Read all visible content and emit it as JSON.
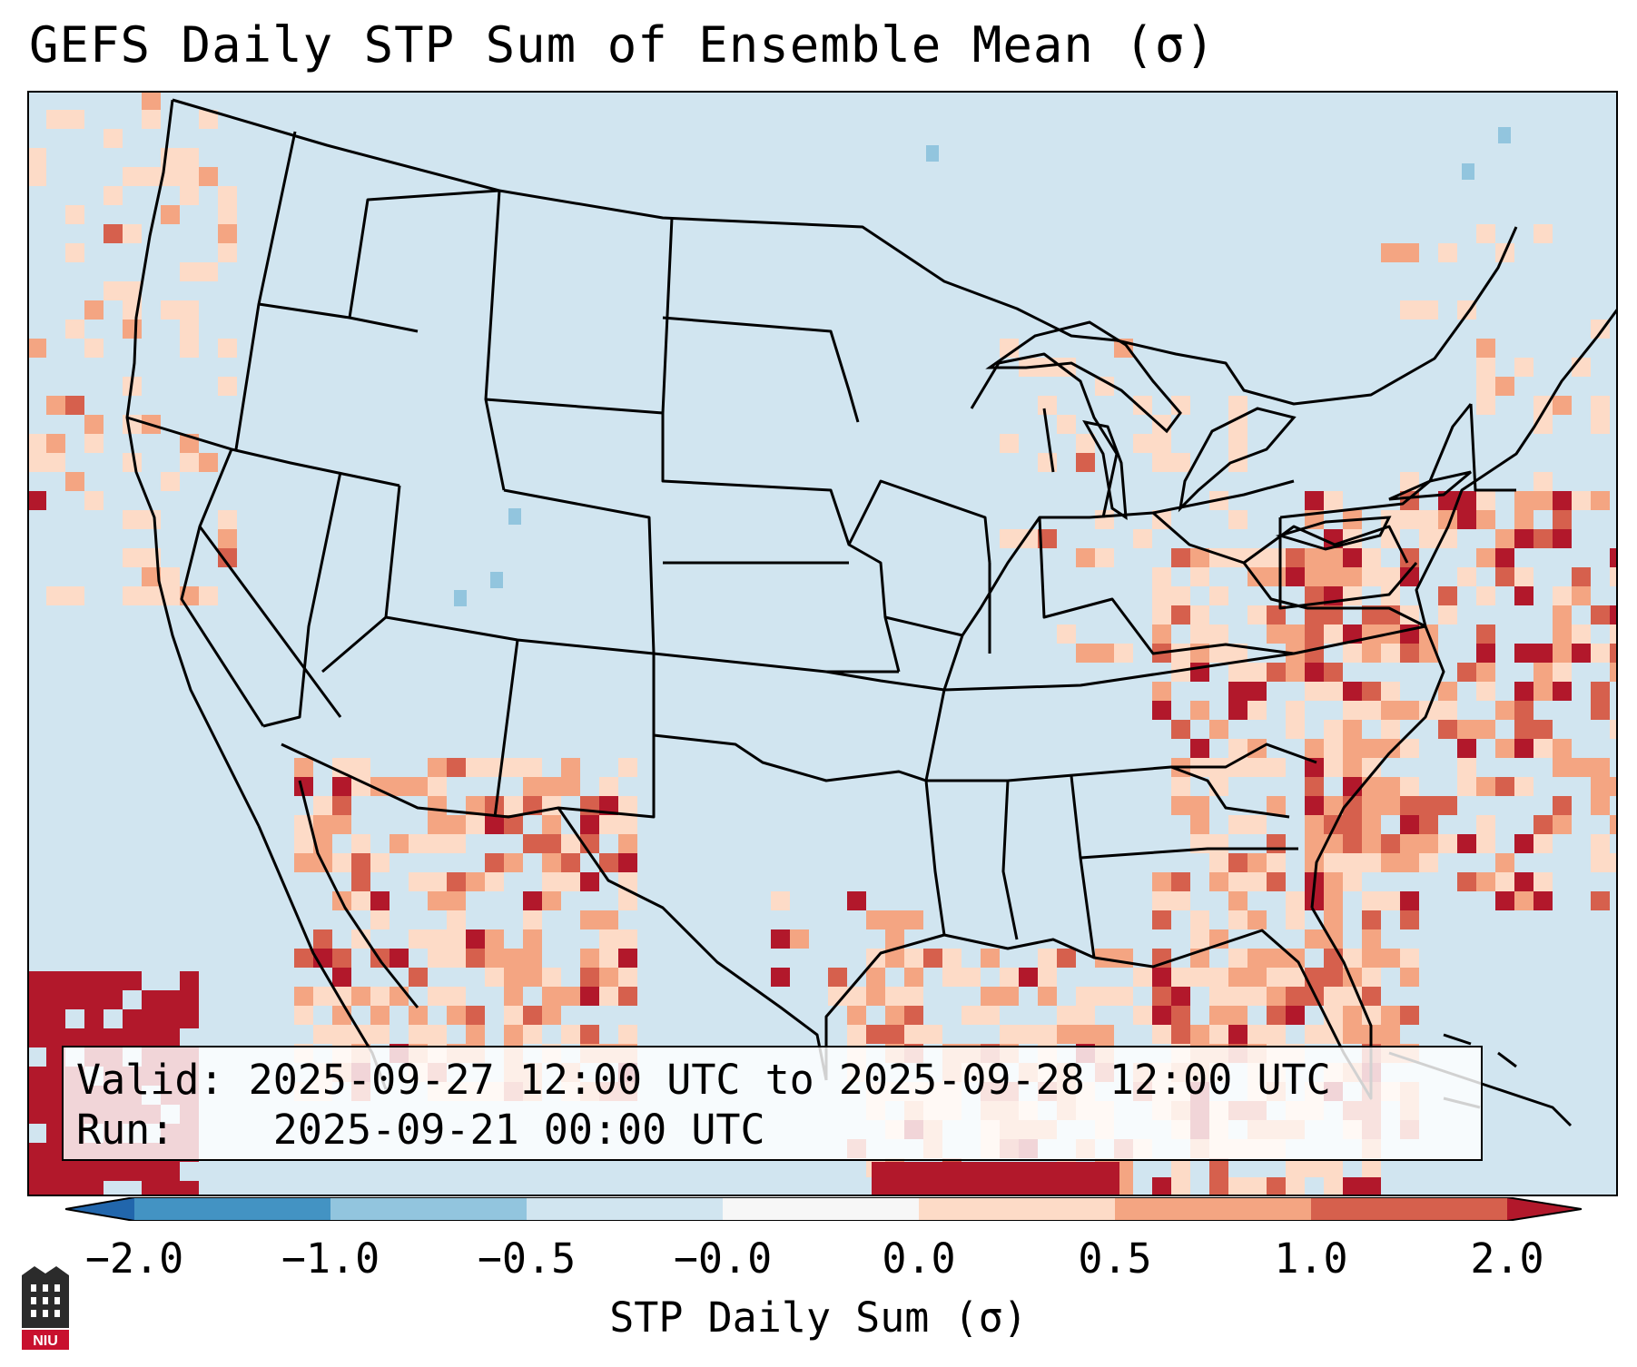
{
  "title": "GEFS Daily STP Sum of Ensemble Mean (σ)",
  "info": {
    "valid_label": "Valid:",
    "valid_value": "2025-09-27 12:00 UTC to 2025-09-28 12:00 UTC",
    "run_label": "Run:",
    "run_value": "2025-09-21 00:00 UTC"
  },
  "colorbar": {
    "label": "STP Daily Sum (σ)",
    "ticks": [
      "−2.0",
      "−1.0",
      "−0.5",
      "−0.0",
      "0.0",
      "0.5",
      "1.0",
      "2.0"
    ],
    "colors": {
      "under": "#2166ac",
      "bin_m2_m1": "#4393c3",
      "bin_m1_m05": "#92c5de",
      "bin_m05_m0": "#d1e5f0",
      "bin_m0_0": "#f7f7f7",
      "bin_0_05": "#fddbc7",
      "bin_05_1": "#f4a582",
      "bin_1_2": "#d6604d",
      "over": "#b2182b"
    }
  },
  "map_colors": {
    "background": "#d1e5f0",
    "light": "#fddbc7",
    "medium": "#f4a582",
    "strong": "#d6604d",
    "max": "#b2182b",
    "negative_light": "#92c5de"
  },
  "logo": {
    "text": "NIU"
  }
}
